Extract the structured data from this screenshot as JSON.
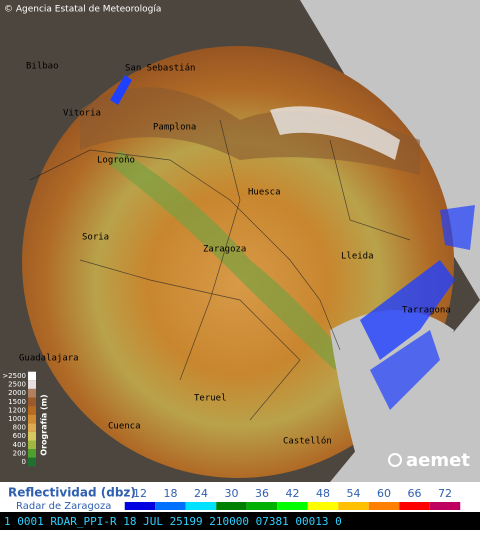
{
  "header": {
    "credit": "© Agencia Estatal de Meteorología"
  },
  "cities": [
    "Bilbao",
    "San Sebastián",
    "Vitoria",
    "Pamplona",
    "Logroño",
    "Huesca",
    "Soria",
    "Zaragoza",
    "Lleida",
    "Tarragona",
    "Guadalajara",
    "Teruel",
    "Cuenca",
    "Castellón"
  ],
  "elevation_legend": {
    "title": "Orografía (m)",
    "labels": [
      ">2500",
      "2500",
      "2000",
      "1500",
      "1200",
      "1000",
      "800",
      "600",
      "400",
      "200",
      "0"
    ],
    "colors": [
      "#ffffff",
      "#e8e0e0",
      "#b08060",
      "#9a5a2a",
      "#b86a20",
      "#d08a30",
      "#e0aa50",
      "#d8c860",
      "#a0b840",
      "#50a030",
      "#207030"
    ]
  },
  "logo": "aemet",
  "reflectivity_legend": {
    "title": "Reflectividad (dbz)",
    "subtitle": "Radar de Zaragoza",
    "values": [
      12,
      18,
      24,
      30,
      36,
      42,
      48,
      54,
      60,
      66,
      72
    ],
    "colors": [
      "#0000e0",
      "#0070ff",
      "#00e0ff",
      "#008000",
      "#00b000",
      "#00ff00",
      "#ffff00",
      "#ffc000",
      "#ff8000",
      "#ff0000",
      "#c00060"
    ]
  },
  "status_bar": "1 0001 RDAR_PPI-R  18 JUL 25199 210000 07381 00013 0"
}
